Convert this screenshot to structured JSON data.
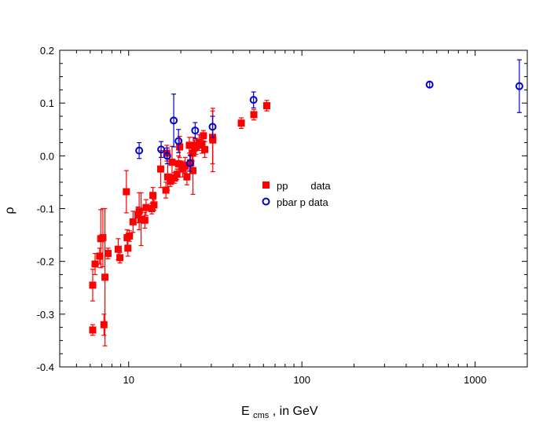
{
  "chart_data": {
    "type": "scatter",
    "title": "",
    "xlabel": {
      "main": "E",
      "subscript": "cms",
      "suffix": ", in GeV"
    },
    "ylabel": "ρ",
    "x_scale": "log",
    "xlim": [
      4,
      2000
    ],
    "ylim": [
      -0.4,
      0.2
    ],
    "x_ticks": [
      10,
      100,
      1000
    ],
    "x_tick_labels": [
      "10",
      "100",
      "1000"
    ],
    "y_ticks": [
      -0.4,
      -0.3,
      -0.2,
      -0.1,
      0.0,
      0.1,
      0.2
    ],
    "y_tick_labels": [
      "-0.4",
      "-0.3",
      "-0.2",
      "-0.1",
      "0.0",
      "0.1",
      "0.2"
    ],
    "grid": false,
    "legend_position": "center-right",
    "legend": [
      {
        "series": "pp",
        "label": "pp        data"
      },
      {
        "series": "pbarp",
        "label": "pbar p data"
      }
    ],
    "series": [
      {
        "name": "pp",
        "label": "pp        data",
        "color": "#ff0000",
        "marker": "square-filled",
        "points": [
          [
            6.2,
            -0.33,
            0.01
          ],
          [
            6.2,
            -0.245,
            0.03
          ],
          [
            6.4,
            -0.205,
            0.02
          ],
          [
            6.8,
            -0.19,
            0.015
          ],
          [
            6.9,
            -0.157,
            0.055
          ],
          [
            7.1,
            -0.155,
            0.055
          ],
          [
            7.2,
            -0.32,
            0.02
          ],
          [
            7.3,
            -0.23,
            0.13
          ],
          [
            7.6,
            -0.185,
            0.01
          ],
          [
            8.7,
            -0.177,
            0.02
          ],
          [
            8.9,
            -0.193,
            0.01
          ],
          [
            9.7,
            -0.068,
            0.04
          ],
          [
            9.8,
            -0.155,
            0.015
          ],
          [
            9.9,
            -0.175,
            0.015
          ],
          [
            10.1,
            -0.152,
            0.01
          ],
          [
            10.6,
            -0.125,
            0.02
          ],
          [
            11.3,
            -0.112,
            0.015
          ],
          [
            11.5,
            -0.105,
            0.035
          ],
          [
            11.8,
            -0.12,
            0.05
          ],
          [
            12.4,
            -0.122,
            0.015
          ],
          [
            12.6,
            -0.098,
            0.015
          ],
          [
            13.6,
            -0.1,
            0.01
          ],
          [
            13.8,
            -0.075,
            0.015
          ],
          [
            14.0,
            -0.093,
            0.01
          ],
          [
            15.3,
            -0.025,
            0.035
          ],
          [
            16.4,
            -0.065,
            0.015
          ],
          [
            16.6,
            0.005,
            0.015
          ],
          [
            16.8,
            -0.04,
            0.025
          ],
          [
            17.4,
            -0.048,
            0.01
          ],
          [
            17.8,
            -0.012,
            0.03
          ],
          [
            18.4,
            -0.042,
            0.01
          ],
          [
            19.0,
            -0.035,
            0.01
          ],
          [
            19.4,
            -0.015,
            0.015
          ],
          [
            19.7,
            0.017,
            0.02
          ],
          [
            20.5,
            -0.025,
            0.015
          ],
          [
            21.2,
            -0.018,
            0.015
          ],
          [
            21.7,
            -0.04,
            0.015
          ],
          [
            22.4,
            0.02,
            0.015
          ],
          [
            22.8,
            -0.013,
            0.015
          ],
          [
            23.3,
            0.005,
            0.015
          ],
          [
            23.5,
            -0.028,
            0.045
          ],
          [
            23.7,
            0.02,
            0.015
          ],
          [
            24.0,
            0.015,
            0.015
          ],
          [
            24.5,
            0.018,
            0.015
          ],
          [
            25.5,
            0.025,
            0.015
          ],
          [
            26.5,
            0.02,
            0.015
          ],
          [
            27.0,
            0.038,
            0.01
          ],
          [
            27.5,
            0.012,
            0.015
          ],
          [
            30.5,
            0.035,
            0.05
          ],
          [
            30.6,
            0.03,
            0.06
          ],
          [
            44.7,
            0.062,
            0.01
          ],
          [
            52.8,
            0.078,
            0.01
          ],
          [
            62.7,
            0.095,
            0.01
          ]
        ]
      },
      {
        "name": "pbarp",
        "label": "pbar p data",
        "color": "#0000cc",
        "marker": "circle-open",
        "points": [
          [
            11.5,
            0.01,
            0.015
          ],
          [
            15.4,
            0.012,
            0.015
          ],
          [
            16.7,
            0.0,
            0.015
          ],
          [
            18.2,
            0.067,
            0.05
          ],
          [
            19.4,
            0.028,
            0.022
          ],
          [
            22.6,
            -0.014,
            0.015
          ],
          [
            24.2,
            0.048,
            0.015
          ],
          [
            30.5,
            0.055,
            0.02
          ],
          [
            52.6,
            0.106,
            0.015
          ],
          [
            546,
            0.135,
            0.005
          ],
          [
            1800,
            0.132,
            0.05
          ]
        ]
      }
    ]
  }
}
